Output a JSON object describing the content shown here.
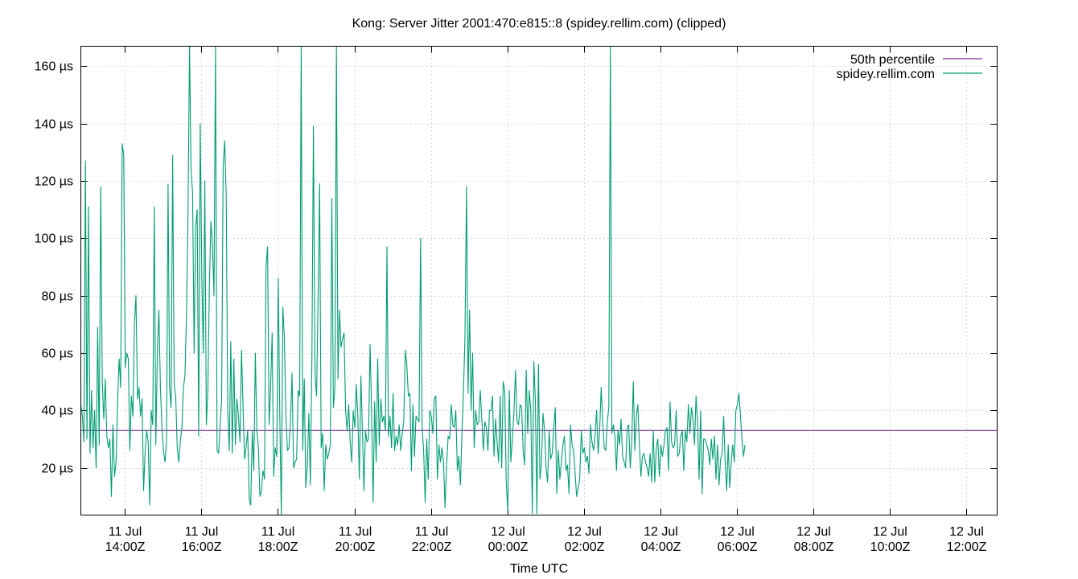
{
  "chart_data": {
    "type": "line",
    "title": "Kong: Server Jitter 2001:470:e815::8 (spidey.rellim.com) (clipped)",
    "xlabel": "Time UTC",
    "ylabel": "",
    "x_unit": "hours since 11 Jul 00:00Z",
    "xlim": [
      12.85,
      36.8
    ],
    "ylim": [
      3.5,
      167
    ],
    "grid": true,
    "legend_position": "top-right",
    "y_ticks": [
      {
        "value": 20,
        "label": "20 µs"
      },
      {
        "value": 40,
        "label": "40 µs"
      },
      {
        "value": 60,
        "label": "60 µs"
      },
      {
        "value": 80,
        "label": "80 µs"
      },
      {
        "value": 100,
        "label": "100 µs"
      },
      {
        "value": 120,
        "label": "120 µs"
      },
      {
        "value": 140,
        "label": "140 µs"
      },
      {
        "value": 160,
        "label": "160 µs"
      }
    ],
    "x_ticks": [
      {
        "value": 14,
        "date": "11 Jul",
        "time": "14:00Z"
      },
      {
        "value": 16,
        "date": "11 Jul",
        "time": "16:00Z"
      },
      {
        "value": 18,
        "date": "11 Jul",
        "time": "18:00Z"
      },
      {
        "value": 20,
        "date": "11 Jul",
        "time": "20:00Z"
      },
      {
        "value": 22,
        "date": "11 Jul",
        "time": "22:00Z"
      },
      {
        "value": 24,
        "date": "12 Jul",
        "time": "00:00Z"
      },
      {
        "value": 26,
        "date": "12 Jul",
        "time": "02:00Z"
      },
      {
        "value": 28,
        "date": "12 Jul",
        "time": "04:00Z"
      },
      {
        "value": 30,
        "date": "12 Jul",
        "time": "06:00Z"
      },
      {
        "value": 32,
        "date": "12 Jul",
        "time": "08:00Z"
      },
      {
        "value": 34,
        "date": "12 Jul",
        "time": "10:00Z"
      },
      {
        "value": 36,
        "date": "12 Jul",
        "time": "12:00Z"
      }
    ],
    "series": [
      {
        "name": "50th percentile",
        "color": "#7e2f8e",
        "x": [
          12.85,
          36.8
        ],
        "values": [
          33,
          33
        ]
      },
      {
        "name": "spidey.rellim.com",
        "color": "#009e73",
        "x_start": 12.85,
        "x_step": 0.04,
        "values": [
          42,
          38,
          29,
          127,
          30,
          111,
          25,
          47,
          27,
          40,
          20,
          69,
          28,
          118,
          50,
          37,
          51,
          31,
          27,
          30,
          10,
          35,
          17,
          22,
          43,
          58,
          48,
          133,
          129,
          55,
          60,
          58,
          26,
          45,
          38,
          70,
          80,
          44,
          48,
          38,
          44,
          12,
          26,
          33,
          29,
          7,
          40,
          35,
          111,
          28,
          60,
          75,
          48,
          34,
          26,
          22,
          29,
          119,
          48,
          41,
          129,
          49,
          45,
          27,
          22,
          29,
          34,
          48,
          52,
          73,
          108,
          168,
          124,
          116,
          60,
          104,
          110,
          31,
          140,
          88,
          60,
          120,
          35,
          47,
          84,
          106,
          98,
          80,
          168,
          26,
          25,
          34,
          44,
          125,
          134,
          115,
          40,
          26,
          64,
          25,
          58,
          28,
          44,
          38,
          29,
          61,
          42,
          23,
          27,
          33,
          9,
          7,
          33,
          19,
          60,
          33,
          27,
          10,
          12,
          19,
          16,
          90,
          97,
          35,
          48,
          67,
          17,
          27,
          24,
          86,
          38,
          3,
          76,
          65,
          38,
          26,
          27,
          36,
          53,
          20,
          22,
          23,
          47,
          45,
          168,
          26,
          51,
          13,
          21,
          39,
          14,
          58,
          139,
          52,
          45,
          79,
          119,
          27,
          32,
          12,
          28,
          23,
          25,
          28,
          114,
          41,
          48,
          167,
          51,
          75,
          62,
          65,
          67,
          40,
          33,
          42,
          29,
          22,
          40,
          34,
          49,
          38,
          16,
          52,
          33,
          12,
          33,
          29,
          30,
          63,
          40,
          8,
          43,
          22,
          58,
          28,
          44,
          36,
          38,
          33,
          97,
          31,
          38,
          27,
          46,
          26,
          31,
          28,
          35,
          26,
          32,
          36,
          61,
          56,
          45,
          46,
          19,
          42,
          24,
          38,
          37,
          36,
          100,
          34,
          26,
          8,
          30,
          16,
          40,
          38,
          32,
          44,
          45,
          16,
          28,
          22,
          27,
          22,
          6,
          21,
          31,
          30,
          42,
          35,
          34,
          40,
          19,
          24,
          14,
          32,
          46,
          66,
          118,
          46,
          75,
          40,
          60,
          27,
          40,
          35,
          36,
          47,
          37,
          26,
          36,
          34,
          26,
          40,
          40,
          45,
          24,
          37,
          29,
          22,
          45,
          20,
          50,
          47,
          15,
          5,
          47,
          22,
          30,
          39,
          54,
          36,
          35,
          42,
          41,
          26,
          21,
          54,
          32,
          47,
          40,
          4,
          57,
          43,
          4,
          56,
          16,
          22,
          39,
          33,
          20,
          15,
          33,
          23,
          25,
          34,
          41,
          11,
          26,
          16,
          22,
          28,
          31,
          19,
          21,
          11,
          35,
          28,
          26,
          18,
          10,
          13,
          16,
          33,
          25,
          27,
          22,
          24,
          18,
          35,
          29,
          26,
          31,
          40,
          25,
          33,
          48,
          36,
          27,
          26,
          36,
          41,
          168,
          32,
          35,
          31,
          19,
          33,
          28,
          37,
          24,
          22,
          20,
          34,
          35,
          20,
          29,
          50,
          26,
          38,
          42,
          28,
          17,
          24,
          25,
          22,
          20,
          17,
          25,
          15,
          33,
          15,
          27,
          30,
          17,
          28,
          24,
          28,
          33,
          34,
          19,
          43,
          29,
          27,
          28,
          40,
          24,
          25,
          31,
          33,
          19,
          33,
          29,
          42,
          32,
          41,
          37,
          28,
          45,
          36,
          16,
          40,
          11,
          30,
          30,
          28,
          26,
          21,
          30,
          23,
          31,
          16,
          28,
          14,
          23,
          25,
          38,
          22,
          12,
          28,
          13,
          22,
          28,
          22,
          40,
          42,
          46,
          38,
          30,
          24,
          28
        ]
      }
    ]
  }
}
